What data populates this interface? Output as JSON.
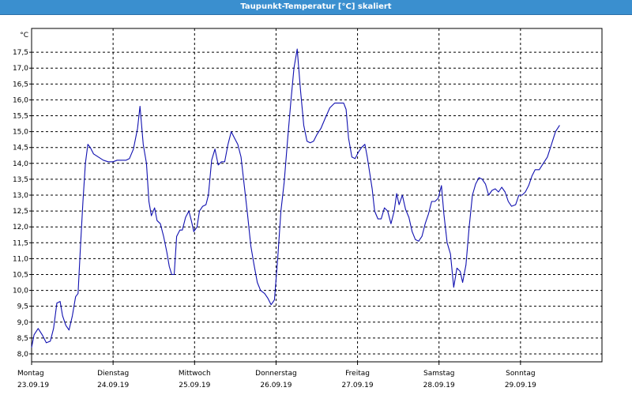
{
  "title": "Taupunkt-Temperatur [°C] skaliert",
  "colors": {
    "titlebar": "#3a8fcf",
    "line": "#1010b0",
    "grid": "#000000"
  },
  "chart_data": {
    "type": "line",
    "title": "Taupunkt-Temperatur [°C] skaliert",
    "unit_label": "°C",
    "ylim": [
      7.75,
      18.25
    ],
    "yticks": [
      "8,0",
      "8,5",
      "9,0",
      "9,5",
      "10,0",
      "10,5",
      "11,0",
      "11,5",
      "12,0",
      "12,5",
      "13,0",
      "13,5",
      "14,0",
      "14,5",
      "15,0",
      "15,5",
      "16,0",
      "16,5",
      "17,0",
      "17,5"
    ],
    "xlim_days": [
      0,
      7
    ],
    "grid": true,
    "x_labels": [
      {
        "day": "Montag",
        "date": "23.09.19"
      },
      {
        "day": "Dienstag",
        "date": "24.09.19"
      },
      {
        "day": "Mittwoch",
        "date": "25.09.19"
      },
      {
        "day": "Donnerstag",
        "date": "26.09.19"
      },
      {
        "day": "Freitag",
        "date": "27.09.19"
      },
      {
        "day": "Samstag",
        "date": "28.09.19"
      },
      {
        "day": "Sonntag",
        "date": "29.09.19"
      }
    ],
    "series": [
      {
        "values": [
          [
            0.0,
            8.2
          ],
          [
            0.03,
            8.6
          ],
          [
            0.08,
            8.8
          ],
          [
            0.13,
            8.6
          ],
          [
            0.18,
            8.35
          ],
          [
            0.23,
            8.4
          ],
          [
            0.27,
            8.8
          ],
          [
            0.31,
            9.6
          ],
          [
            0.35,
            9.65
          ],
          [
            0.38,
            9.2
          ],
          [
            0.42,
            8.9
          ],
          [
            0.46,
            8.75
          ],
          [
            0.5,
            9.2
          ],
          [
            0.54,
            9.8
          ],
          [
            0.57,
            9.9
          ],
          [
            0.6,
            11.4
          ],
          [
            0.63,
            12.8
          ],
          [
            0.66,
            14.0
          ],
          [
            0.69,
            14.6
          ],
          [
            0.72,
            14.5
          ],
          [
            0.76,
            14.3
          ],
          [
            0.82,
            14.2
          ],
          [
            0.88,
            14.1
          ],
          [
            0.94,
            14.05
          ],
          [
            1.0,
            14.05
          ],
          [
            1.05,
            14.1
          ],
          [
            1.1,
            14.1
          ],
          [
            1.16,
            14.1
          ],
          [
            1.2,
            14.15
          ],
          [
            1.25,
            14.45
          ],
          [
            1.3,
            15.1
          ],
          [
            1.33,
            15.8
          ],
          [
            1.37,
            14.6
          ],
          [
            1.41,
            14.0
          ],
          [
            1.44,
            12.8
          ],
          [
            1.47,
            12.35
          ],
          [
            1.51,
            12.6
          ],
          [
            1.54,
            12.2
          ],
          [
            1.58,
            12.1
          ],
          [
            1.62,
            11.7
          ],
          [
            1.66,
            11.2
          ],
          [
            1.69,
            10.75
          ],
          [
            1.72,
            10.5
          ],
          [
            1.75,
            10.5
          ],
          [
            1.78,
            11.7
          ],
          [
            1.82,
            11.9
          ],
          [
            1.85,
            11.9
          ],
          [
            1.89,
            12.3
          ],
          [
            1.93,
            12.5
          ],
          [
            1.96,
            12.2
          ],
          [
            1.99,
            11.85
          ],
          [
            2.03,
            12.0
          ],
          [
            2.06,
            12.5
          ],
          [
            2.1,
            12.65
          ],
          [
            2.14,
            12.7
          ],
          [
            2.17,
            13.0
          ],
          [
            2.21,
            14.1
          ],
          [
            2.25,
            14.45
          ],
          [
            2.29,
            13.95
          ],
          [
            2.33,
            14.05
          ],
          [
            2.37,
            14.05
          ],
          [
            2.41,
            14.6
          ],
          [
            2.45,
            15.0
          ],
          [
            2.49,
            14.8
          ],
          [
            2.53,
            14.6
          ],
          [
            2.57,
            14.2
          ],
          [
            2.61,
            13.3
          ],
          [
            2.65,
            12.4
          ],
          [
            2.69,
            11.4
          ],
          [
            2.73,
            10.8
          ],
          [
            2.77,
            10.25
          ],
          [
            2.81,
            10.0
          ],
          [
            2.86,
            9.9
          ],
          [
            2.9,
            9.75
          ],
          [
            2.94,
            9.55
          ],
          [
            2.98,
            9.7
          ],
          [
            3.02,
            11.0
          ],
          [
            3.06,
            12.5
          ],
          [
            3.1,
            13.4
          ],
          [
            3.14,
            14.7
          ],
          [
            3.18,
            15.9
          ],
          [
            3.22,
            17.0
          ],
          [
            3.26,
            17.6
          ],
          [
            3.3,
            16.3
          ],
          [
            3.34,
            15.2
          ],
          [
            3.38,
            14.7
          ],
          [
            3.42,
            14.65
          ],
          [
            3.46,
            14.7
          ],
          [
            3.5,
            14.9
          ],
          [
            3.55,
            15.1
          ],
          [
            3.6,
            15.4
          ],
          [
            3.66,
            15.75
          ],
          [
            3.72,
            15.9
          ],
          [
            3.78,
            15.9
          ],
          [
            3.83,
            15.9
          ],
          [
            3.86,
            15.7
          ],
          [
            3.89,
            14.8
          ],
          [
            3.93,
            14.2
          ],
          [
            3.97,
            14.15
          ],
          [
            4.01,
            14.35
          ],
          [
            4.05,
            14.5
          ],
          [
            4.09,
            14.6
          ],
          [
            4.12,
            14.2
          ],
          [
            4.15,
            13.7
          ],
          [
            4.18,
            13.2
          ],
          [
            4.21,
            12.5
          ],
          [
            4.25,
            12.25
          ],
          [
            4.29,
            12.25
          ],
          [
            4.33,
            12.6
          ],
          [
            4.37,
            12.5
          ],
          [
            4.41,
            12.1
          ],
          [
            4.45,
            12.5
          ],
          [
            4.48,
            13.05
          ],
          [
            4.51,
            12.7
          ],
          [
            4.55,
            13.0
          ],
          [
            4.59,
            12.55
          ],
          [
            4.63,
            12.3
          ],
          [
            4.67,
            11.85
          ],
          [
            4.71,
            11.6
          ],
          [
            4.75,
            11.55
          ],
          [
            4.79,
            11.7
          ],
          [
            4.83,
            12.1
          ],
          [
            4.87,
            12.4
          ],
          [
            4.91,
            12.8
          ],
          [
            4.95,
            12.8
          ],
          [
            4.99,
            12.9
          ],
          [
            5.03,
            13.3
          ],
          [
            5.06,
            12.4
          ],
          [
            5.1,
            11.5
          ],
          [
            5.14,
            11.15
          ],
          [
            5.18,
            10.1
          ],
          [
            5.22,
            10.7
          ],
          [
            5.26,
            10.6
          ],
          [
            5.29,
            10.25
          ],
          [
            5.33,
            10.8
          ],
          [
            5.37,
            12.0
          ],
          [
            5.41,
            13.0
          ],
          [
            5.45,
            13.35
          ],
          [
            5.49,
            13.55
          ],
          [
            5.53,
            13.5
          ],
          [
            5.57,
            13.35
          ],
          [
            5.61,
            13.0
          ],
          [
            5.65,
            13.15
          ],
          [
            5.69,
            13.2
          ],
          [
            5.73,
            13.1
          ],
          [
            5.77,
            13.25
          ],
          [
            5.81,
            13.1
          ],
          [
            5.85,
            12.8
          ],
          [
            5.89,
            12.65
          ],
          [
            5.94,
            12.7
          ],
          [
            5.98,
            13.0
          ],
          [
            6.02,
            13.0
          ],
          [
            6.06,
            13.1
          ],
          [
            6.1,
            13.3
          ],
          [
            6.14,
            13.6
          ],
          [
            6.18,
            13.8
          ],
          [
            6.23,
            13.8
          ],
          [
            6.28,
            14.0
          ],
          [
            6.33,
            14.2
          ],
          [
            6.38,
            14.6
          ],
          [
            6.43,
            15.0
          ],
          [
            6.48,
            15.2
          ]
        ]
      }
    ]
  }
}
